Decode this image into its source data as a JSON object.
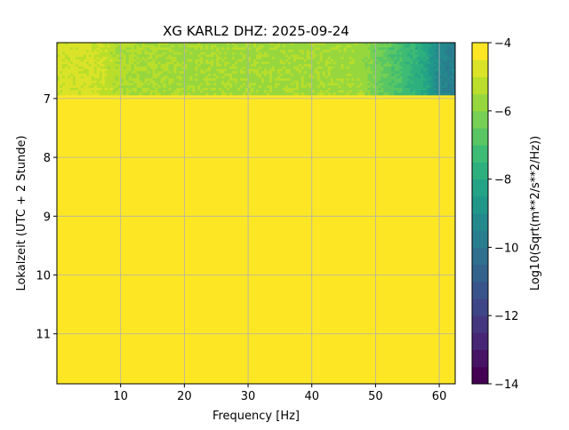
{
  "chart_data": {
    "type": "heatmap",
    "title": "XG KARL2  DHZ: 2025-09-24",
    "xlabel": "Frequency [Hz]",
    "ylabel": "Lokalzeit (UTC + 2 Stunde)",
    "xlim": [
      0,
      62.5
    ],
    "ylim": [
      11.85,
      6.05
    ],
    "xticks": [
      10,
      20,
      30,
      40,
      50,
      60
    ],
    "yticks": [
      7,
      8,
      9,
      10,
      11
    ],
    "grid": true,
    "colorbar": {
      "label": "Log10(Sqrt(m**2/s**2/Hz))",
      "range": [
        -14,
        -4
      ],
      "ticks": [
        -4,
        -6,
        -8,
        -10,
        -12,
        -14
      ],
      "levels": 20,
      "colormap": "viridis"
    },
    "data_band": {
      "time_range": [
        6.05,
        6.94
      ],
      "profile_freq": [
        0,
        5,
        10,
        20,
        30,
        40,
        48,
        50,
        53,
        56,
        58,
        60,
        62.5
      ],
      "profile_value": [
        -4.8,
        -4.9,
        -5.4,
        -5.6,
        -5.6,
        -5.6,
        -5.7,
        -6.3,
        -6.9,
        -7.6,
        -8.2,
        -9.3,
        -9.8
      ]
    },
    "fill_after_band_value": -4
  }
}
